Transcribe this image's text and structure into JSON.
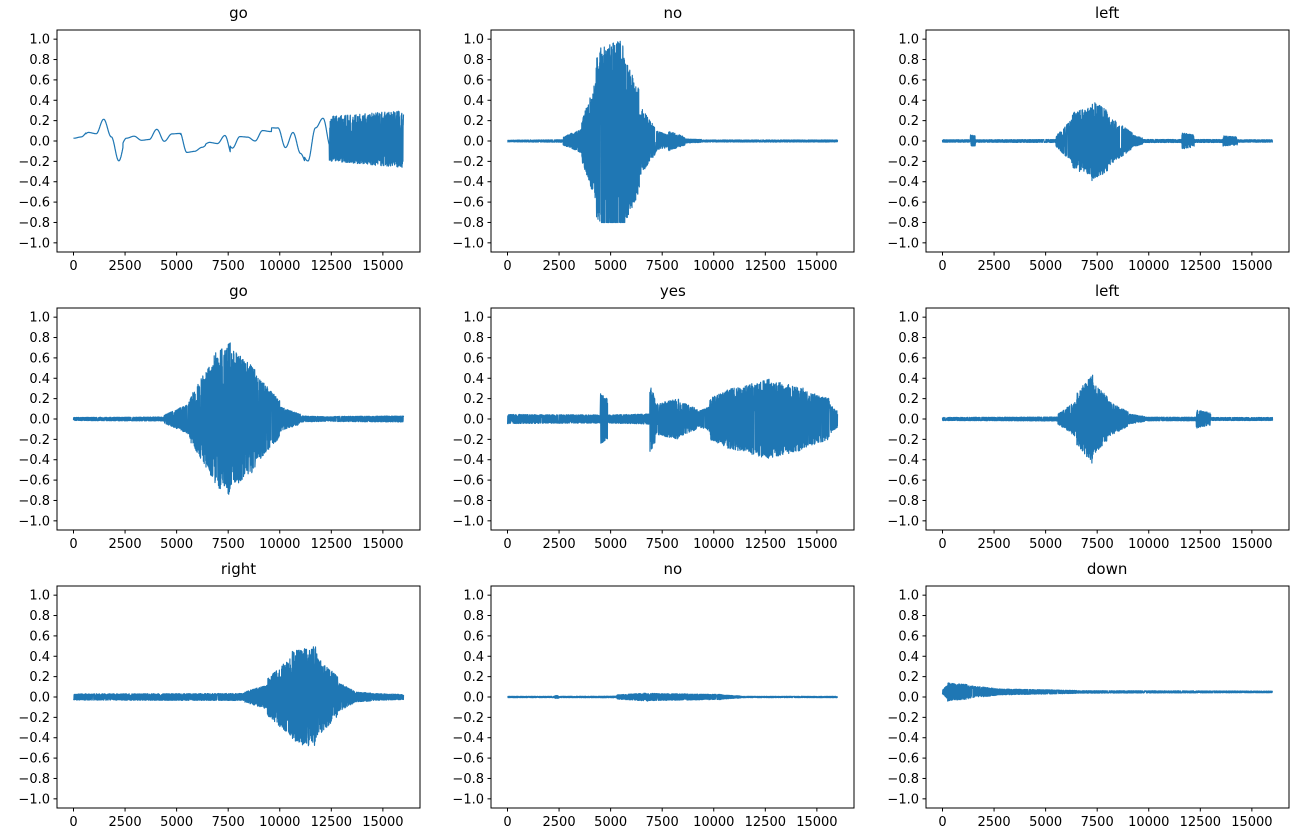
{
  "figure": {
    "background": "#ffffff",
    "line_color": "#1f77b4",
    "axis_color": "#000000",
    "grid": false,
    "legend": "none"
  },
  "chart_data": [
    {
      "type": "line",
      "title": "go",
      "xlabel": "",
      "ylabel": "",
      "x_ticks": [
        0,
        2500,
        5000,
        7500,
        10000,
        12500,
        15000
      ],
      "y_ticks": [
        1.0,
        0.8,
        0.6,
        0.4,
        0.2,
        0.0,
        -0.2,
        -0.4,
        -0.6,
        -0.8,
        -1.0
      ],
      "xlim": [
        -800,
        16800
      ],
      "ylim": [
        -1.09,
        1.09
      ],
      "n_samples": 16000,
      "dc": 0.02,
      "seed": 11,
      "clip": [
        -1.05,
        1.05
      ],
      "envelope_segments": [
        [
          0,
          600,
          0.3,
          0.35,
          "smooth"
        ],
        [
          600,
          2400,
          0.3,
          0.25,
          "smooth"
        ],
        [
          2400,
          5200,
          0.12,
          0.15,
          "smooth"
        ],
        [
          5200,
          6400,
          0.2,
          0.18,
          "smooth"
        ],
        [
          6400,
          7600,
          0.15,
          0.22,
          "smooth"
        ],
        [
          7600,
          9600,
          0.12,
          0.12,
          "smooth"
        ],
        [
          9600,
          11200,
          0.18,
          0.3,
          "smooth"
        ],
        [
          11200,
          12400,
          0.25,
          0.2,
          "smooth"
        ],
        [
          12400,
          16000,
          0.22,
          0.28,
          "noise"
        ]
      ]
    },
    {
      "type": "line",
      "title": "no",
      "xlabel": "",
      "ylabel": "",
      "x_ticks": [
        0,
        2500,
        5000,
        7500,
        10000,
        12500,
        15000
      ],
      "y_ticks": [
        1.0,
        0.8,
        0.6,
        0.4,
        0.2,
        0.0,
        -0.2,
        -0.4,
        -0.6,
        -0.8,
        -1.0
      ],
      "xlim": [
        -800,
        16800
      ],
      "ylim": [
        -1.09,
        1.09
      ],
      "n_samples": 16000,
      "dc": 0,
      "seed": 22,
      "clip": [
        -0.8,
        1.0
      ],
      "envelope_segments": [
        [
          0,
          2700,
          0.008,
          0.012,
          "noise"
        ],
        [
          2700,
          3600,
          0.04,
          0.12,
          "noise"
        ],
        [
          3600,
          4300,
          0.2,
          0.6,
          "noise"
        ],
        [
          4300,
          5600,
          0.9,
          1.0,
          "noise"
        ],
        [
          5600,
          6400,
          0.85,
          0.5,
          "noise"
        ],
        [
          6400,
          7200,
          0.35,
          0.12,
          "noise"
        ],
        [
          7200,
          7800,
          0.1,
          0.06,
          "noise"
        ],
        [
          7800,
          8600,
          0.1,
          0.04,
          "noise"
        ],
        [
          8600,
          9400,
          0.02,
          0.015,
          "noise"
        ],
        [
          9400,
          16000,
          0.01,
          0.01,
          "noise"
        ]
      ]
    },
    {
      "type": "line",
      "title": "left",
      "xlabel": "",
      "ylabel": "",
      "x_ticks": [
        0,
        2500,
        5000,
        7500,
        10000,
        12500,
        15000
      ],
      "y_ticks": [
        1.0,
        0.8,
        0.6,
        0.4,
        0.2,
        0.0,
        -0.2,
        -0.4,
        -0.6,
        -0.8,
        -1.0
      ],
      "xlim": [
        -800,
        16800
      ],
      "ylim": [
        -1.09,
        1.09
      ],
      "n_samples": 16000,
      "dc": 0,
      "seed": 33,
      "clip": [
        -0.52,
        0.4
      ],
      "envelope_segments": [
        [
          0,
          1350,
          0.012,
          0.012,
          "noise"
        ],
        [
          1350,
          1600,
          0.06,
          0.05,
          "noise"
        ],
        [
          1600,
          5500,
          0.012,
          0.015,
          "noise"
        ],
        [
          5500,
          6300,
          0.05,
          0.22,
          "noise"
        ],
        [
          6300,
          7200,
          0.28,
          0.33,
          "noise"
        ],
        [
          7200,
          8000,
          0.4,
          0.3,
          "noise"
        ],
        [
          8000,
          9200,
          0.25,
          0.08,
          "noise"
        ],
        [
          9200,
          9700,
          0.06,
          0.03,
          "noise"
        ],
        [
          9700,
          11600,
          0.015,
          0.015,
          "noise"
        ],
        [
          11600,
          12200,
          0.08,
          0.06,
          "noise"
        ],
        [
          12200,
          13600,
          0.015,
          0.015,
          "noise"
        ],
        [
          13600,
          14300,
          0.05,
          0.04,
          "noise"
        ],
        [
          14300,
          16000,
          0.012,
          0.012,
          "noise"
        ]
      ]
    },
    {
      "type": "line",
      "title": "go",
      "xlabel": "",
      "ylabel": "",
      "x_ticks": [
        0,
        2500,
        5000,
        7500,
        10000,
        12500,
        15000
      ],
      "y_ticks": [
        1.0,
        0.8,
        0.6,
        0.4,
        0.2,
        0.0,
        -0.2,
        -0.4,
        -0.6,
        -0.8,
        -1.0
      ],
      "xlim": [
        -800,
        16800
      ],
      "ylim": [
        -1.09,
        1.09
      ],
      "n_samples": 16000,
      "dc": 0,
      "seed": 44,
      "clip": [
        -0.85,
        0.78
      ],
      "envelope_segments": [
        [
          0,
          4400,
          0.015,
          0.02,
          "noise"
        ],
        [
          4400,
          5600,
          0.04,
          0.15,
          "noise"
        ],
        [
          5600,
          6800,
          0.2,
          0.6,
          "noise"
        ],
        [
          6800,
          7600,
          0.65,
          0.75,
          "noise"
        ],
        [
          7600,
          8800,
          0.7,
          0.5,
          "noise"
        ],
        [
          8800,
          10000,
          0.45,
          0.18,
          "noise"
        ],
        [
          10000,
          11000,
          0.12,
          0.05,
          "noise"
        ],
        [
          11000,
          12600,
          0.03,
          0.02,
          "noise"
        ],
        [
          12600,
          16000,
          0.025,
          0.03,
          "noise"
        ]
      ]
    },
    {
      "type": "line",
      "title": "yes",
      "xlabel": "",
      "ylabel": "",
      "x_ticks": [
        0,
        2500,
        5000,
        7500,
        10000,
        12500,
        15000
      ],
      "y_ticks": [
        1.0,
        0.8,
        0.6,
        0.4,
        0.2,
        0.0,
        -0.2,
        -0.4,
        -0.6,
        -0.8,
        -1.0
      ],
      "xlim": [
        -800,
        16800
      ],
      "ylim": [
        -1.09,
        1.09
      ],
      "n_samples": 16000,
      "dc": 0,
      "seed": 55,
      "clip": [
        -0.55,
        0.45
      ],
      "envelope_segments": [
        [
          0,
          4500,
          0.045,
          0.04,
          "noise"
        ],
        [
          4500,
          4850,
          0.25,
          0.2,
          "noise"
        ],
        [
          4850,
          6900,
          0.04,
          0.05,
          "noise"
        ],
        [
          6900,
          7150,
          0.32,
          0.25,
          "noise"
        ],
        [
          7150,
          8300,
          0.15,
          0.2,
          "noise"
        ],
        [
          8300,
          9200,
          0.18,
          0.1,
          "noise"
        ],
        [
          9200,
          9800,
          0.07,
          0.12,
          "noise"
        ],
        [
          9800,
          11000,
          0.2,
          0.32,
          "noise"
        ],
        [
          11000,
          12800,
          0.3,
          0.4,
          "noise"
        ],
        [
          12800,
          14400,
          0.38,
          0.3,
          "noise"
        ],
        [
          14400,
          15600,
          0.28,
          0.2,
          "noise"
        ],
        [
          15600,
          16000,
          0.15,
          0.08,
          "noise"
        ]
      ]
    },
    {
      "type": "line",
      "title": "left",
      "xlabel": "",
      "ylabel": "",
      "x_ticks": [
        0,
        2500,
        5000,
        7500,
        10000,
        12500,
        15000
      ],
      "y_ticks": [
        1.0,
        0.8,
        0.6,
        0.4,
        0.2,
        0.0,
        -0.2,
        -0.4,
        -0.6,
        -0.8,
        -1.0
      ],
      "xlim": [
        -800,
        16800
      ],
      "ylim": [
        -1.09,
        1.09
      ],
      "n_samples": 16000,
      "dc": 0,
      "seed": 66,
      "clip": [
        -0.48,
        0.47
      ],
      "envelope_segments": [
        [
          0,
          5600,
          0.015,
          0.02,
          "noise"
        ],
        [
          5600,
          6500,
          0.05,
          0.18,
          "noise"
        ],
        [
          6500,
          7300,
          0.25,
          0.45,
          "noise"
        ],
        [
          7300,
          8000,
          0.35,
          0.22,
          "noise"
        ],
        [
          8000,
          9000,
          0.18,
          0.07,
          "noise"
        ],
        [
          9000,
          9800,
          0.05,
          0.025,
          "noise"
        ],
        [
          9800,
          12300,
          0.018,
          0.018,
          "noise"
        ],
        [
          12300,
          13000,
          0.09,
          0.06,
          "noise"
        ],
        [
          13000,
          16000,
          0.015,
          0.015,
          "noise"
        ]
      ]
    },
    {
      "type": "line",
      "title": "right",
      "xlabel": "",
      "ylabel": "",
      "x_ticks": [
        0,
        2500,
        5000,
        7500,
        10000,
        12500,
        15000
      ],
      "y_ticks": [
        1.0,
        0.8,
        0.6,
        0.4,
        0.2,
        0.0,
        -0.2,
        -0.4,
        -0.6,
        -0.8,
        -1.0
      ],
      "xlim": [
        -800,
        16800
      ],
      "ylim": [
        -1.09,
        1.09
      ],
      "n_samples": 16000,
      "dc": 0,
      "seed": 77,
      "clip": [
        -0.68,
        0.52
      ],
      "envelope_segments": [
        [
          0,
          8300,
          0.03,
          0.035,
          "noise"
        ],
        [
          8300,
          9400,
          0.05,
          0.12,
          "noise"
        ],
        [
          9400,
          10600,
          0.18,
          0.4,
          "noise"
        ],
        [
          10600,
          11800,
          0.45,
          0.5,
          "noise"
        ],
        [
          11800,
          12800,
          0.4,
          0.2,
          "noise"
        ],
        [
          12800,
          13600,
          0.15,
          0.06,
          "noise"
        ],
        [
          13600,
          14400,
          0.05,
          0.04,
          "noise"
        ],
        [
          14400,
          16000,
          0.035,
          0.025,
          "noise"
        ]
      ]
    },
    {
      "type": "line",
      "title": "no",
      "xlabel": "",
      "ylabel": "",
      "x_ticks": [
        0,
        2500,
        5000,
        7500,
        10000,
        12500,
        15000
      ],
      "y_ticks": [
        1.0,
        0.8,
        0.6,
        0.4,
        0.2,
        0.0,
        -0.2,
        -0.4,
        -0.6,
        -0.8,
        -1.0
      ],
      "xlim": [
        -800,
        16800
      ],
      "ylim": [
        -1.09,
        1.09
      ],
      "n_samples": 16000,
      "dc": 0,
      "seed": 88,
      "clip": [
        -0.1,
        0.1
      ],
      "envelope_segments": [
        [
          0,
          2300,
          0.006,
          0.006,
          "noise"
        ],
        [
          2300,
          2500,
          0.015,
          0.012,
          "noise"
        ],
        [
          2500,
          5300,
          0.006,
          0.008,
          "noise"
        ],
        [
          5300,
          6800,
          0.02,
          0.04,
          "noise"
        ],
        [
          6800,
          8600,
          0.035,
          0.03,
          "noise"
        ],
        [
          8600,
          10400,
          0.03,
          0.025,
          "noise"
        ],
        [
          10400,
          11300,
          0.02,
          0.01,
          "noise"
        ],
        [
          11300,
          16000,
          0.006,
          0.006,
          "noise"
        ]
      ]
    },
    {
      "type": "line",
      "title": "down",
      "xlabel": "",
      "ylabel": "",
      "x_ticks": [
        0,
        2500,
        5000,
        7500,
        10000,
        12500,
        15000
      ],
      "y_ticks": [
        1.0,
        0.8,
        0.6,
        0.4,
        0.2,
        0.0,
        -0.2,
        -0.4,
        -0.6,
        -0.8,
        -1.0
      ],
      "xlim": [
        -800,
        16800
      ],
      "ylim": [
        -1.09,
        1.09
      ],
      "n_samples": 16000,
      "dc": 0.05,
      "seed": 99,
      "clip": [
        -0.12,
        0.18
      ],
      "envelope_segments": [
        [
          0,
          250,
          0.02,
          0.07,
          "noise"
        ],
        [
          250,
          1300,
          0.09,
          0.07,
          "noise"
        ],
        [
          1300,
          2600,
          0.06,
          0.035,
          "noise"
        ],
        [
          2600,
          6500,
          0.03,
          0.015,
          "noise"
        ],
        [
          6500,
          16000,
          0.012,
          0.008,
          "noise"
        ]
      ]
    }
  ]
}
